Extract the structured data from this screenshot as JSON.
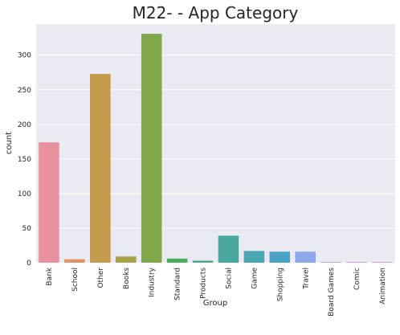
{
  "chart_data": {
    "type": "bar",
    "title": "M22- - App Category",
    "xlabel": "Group",
    "ylabel": "count",
    "categories": [
      "Bank",
      "School",
      "Other",
      "Books",
      "Industry",
      "Standard",
      "Products",
      "Social",
      "Game",
      "Shopping",
      "Travel",
      "Board Games",
      "Comic",
      "Animation"
    ],
    "values": [
      174,
      5,
      273,
      9,
      331,
      6,
      3,
      39,
      17,
      16,
      16,
      1,
      1,
      1
    ],
    "colors": [
      "#e8919f",
      "#e59066",
      "#c49a4d",
      "#a8a14a",
      "#80a84a",
      "#4dad5e",
      "#4fab86",
      "#48a89e",
      "#4aa6b0",
      "#4aa2c5",
      "#8da8e8",
      "#b99ae4",
      "#de8ce0",
      "#e88ec2"
    ],
    "ylim": [
      0,
      345
    ],
    "yticks": [
      0,
      50,
      100,
      150,
      200,
      250,
      300
    ],
    "grid": true,
    "background": "#eaeaf2"
  }
}
